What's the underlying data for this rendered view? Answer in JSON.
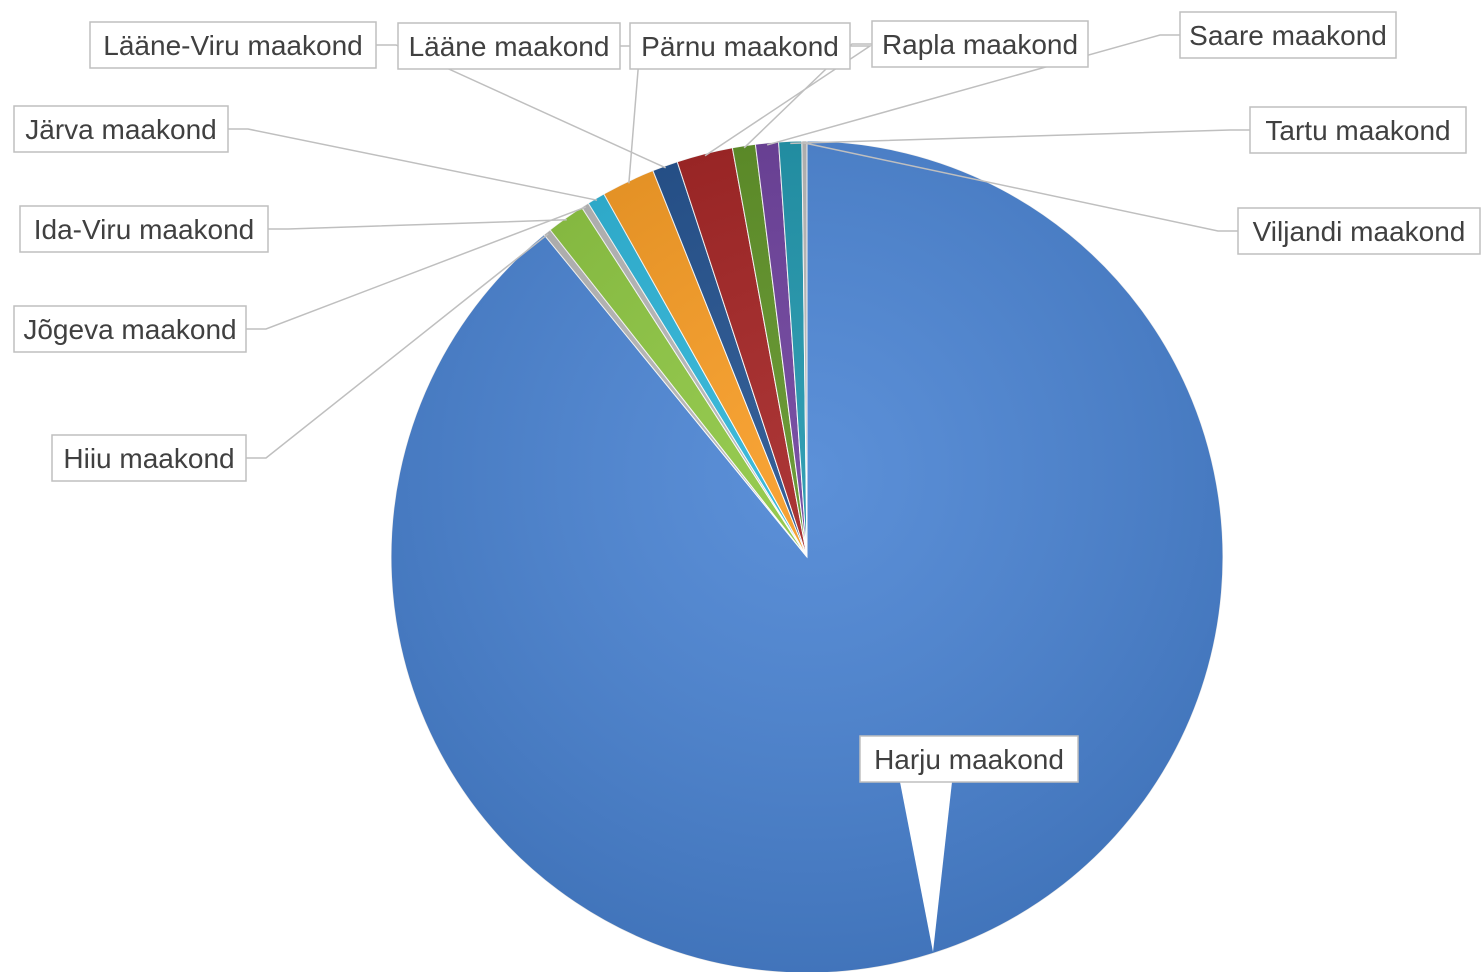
{
  "chart_data": {
    "type": "pie",
    "title": "",
    "start_angle_deg": 0,
    "direction": "clockwise",
    "slices": [
      {
        "label": "Harju maakond",
        "value": 90.0,
        "color": "#4a84d4"
      },
      {
        "label": "Hiiu maakond",
        "value": 0.3,
        "color": "#b8b8b8"
      },
      {
        "label": "Ida-Viru maakond",
        "value": 1.5,
        "color": "#8cc63f"
      },
      {
        "label": "Jõgeva maakond",
        "value": 0.3,
        "color": "#b8b8b8"
      },
      {
        "label": "Järva maakond",
        "value": 0.7,
        "color": "#2ab4d8"
      },
      {
        "label": "Lääne maakond",
        "value": 2.1,
        "color": "#f79a20"
      },
      {
        "label": "Lääne-Viru maakond",
        "value": 1.0,
        "color": "#1f4e8c"
      },
      {
        "label": "Pärnu maakond",
        "value": 2.2,
        "color": "#a11f1f"
      },
      {
        "label": "Rapla maakond",
        "value": 0.9,
        "color": "#5b8f22"
      },
      {
        "label": "Saare maakond",
        "value": 0.9,
        "color": "#6a3d9a"
      },
      {
        "label": "Tartu maakond",
        "value": 0.9,
        "color": "#1b93aa"
      },
      {
        "label": "Viljandi maakond",
        "value": 0.2,
        "color": "#b8b8b8"
      }
    ]
  }
}
